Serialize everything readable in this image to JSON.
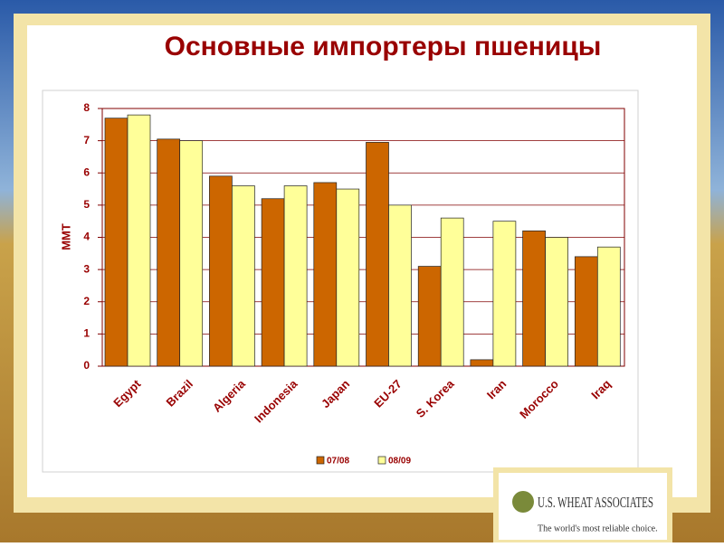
{
  "chart_data": {
    "type": "bar",
    "title": "Основные импортеры пшеницы",
    "y_label": "MMT",
    "categories": [
      "Egypt",
      "Brazil",
      "Algeria",
      "Indonesia",
      "Japan",
      "EU-27",
      "S. Korea",
      "Iran",
      "Morocco",
      "Iraq"
    ],
    "series": [
      {
        "name": "07/08",
        "color": "#cc6600",
        "values": [
          7.7,
          7.05,
          5.9,
          5.2,
          5.7,
          6.95,
          3.1,
          0.2,
          4.2,
          3.4
        ]
      },
      {
        "name": "08/09",
        "color": "#ffff99",
        "values": [
          7.8,
          7.0,
          5.6,
          5.6,
          5.5,
          5.0,
          4.6,
          4.5,
          4.0,
          3.7
        ]
      }
    ],
    "ylim": [
      0,
      8
    ],
    "yticks": [
      0,
      1,
      2,
      3,
      4,
      5,
      6,
      7,
      8
    ],
    "grid": true,
    "legend": "bottom"
  },
  "logo": {
    "name": "U.S. WHEAT ASSOCIATES",
    "tagline": "The world's most reliable choice."
  }
}
